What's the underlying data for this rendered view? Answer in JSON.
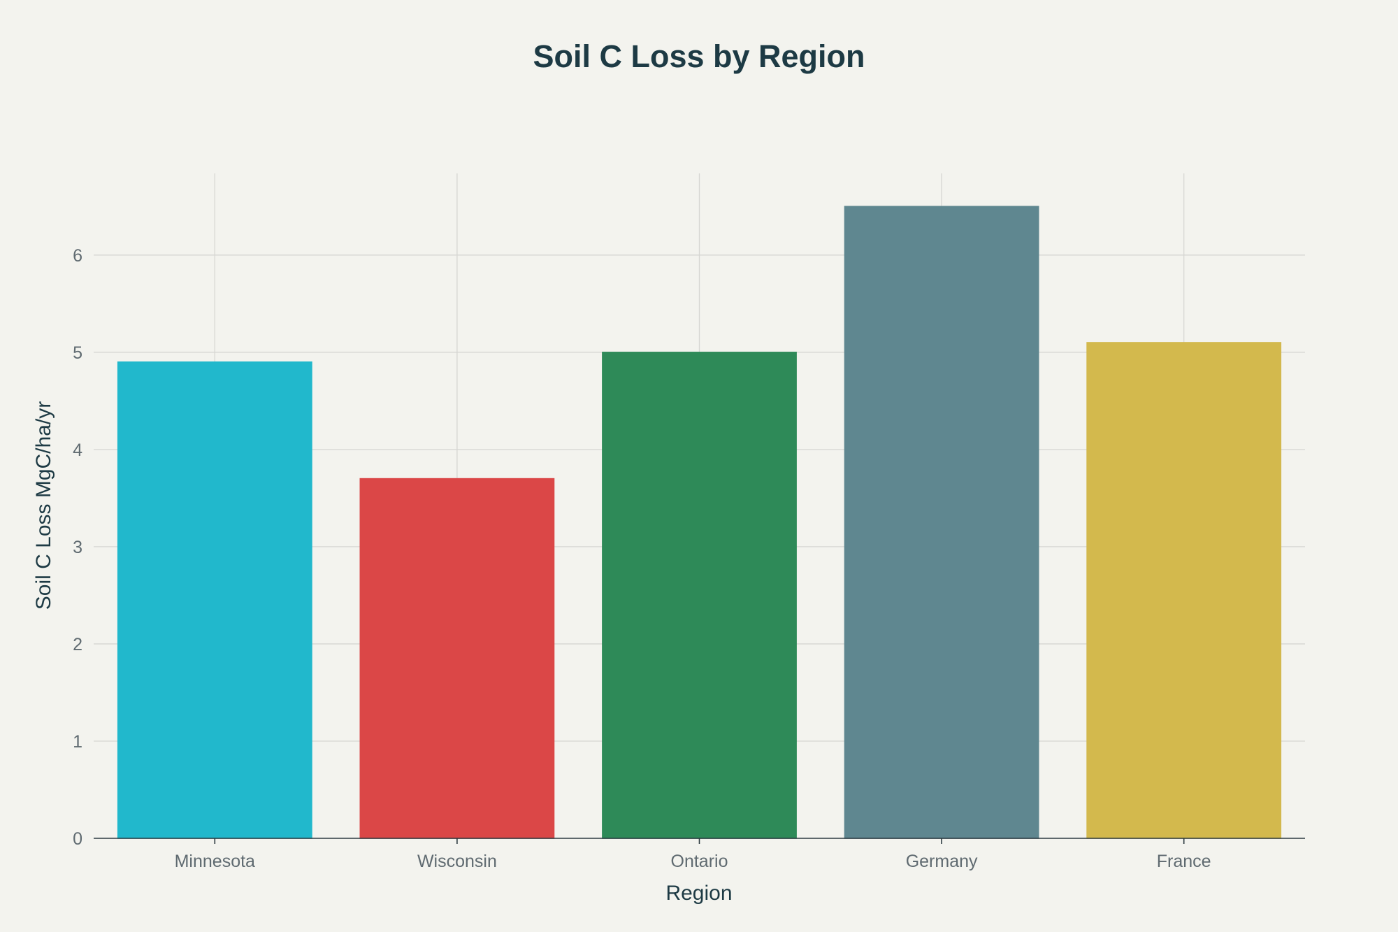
{
  "chart_data": {
    "type": "bar",
    "title": "Soil C Loss by Region",
    "xlabel": "Region",
    "ylabel": "Soil C Loss MgC/ha/yr",
    "categories": [
      "Minnesota",
      "Wisconsin",
      "Ontario",
      "Germany",
      "France"
    ],
    "values": [
      4.9,
      3.7,
      5.0,
      6.5,
      5.1
    ],
    "colors": [
      "#21b8cc",
      "#db4747",
      "#2e8a58",
      "#5f8790",
      "#d3b94d"
    ],
    "ylim": [
      0,
      6.84
    ],
    "yticks": [
      0,
      1,
      2,
      3,
      4,
      5,
      6
    ],
    "grid": true,
    "legend": "none"
  }
}
